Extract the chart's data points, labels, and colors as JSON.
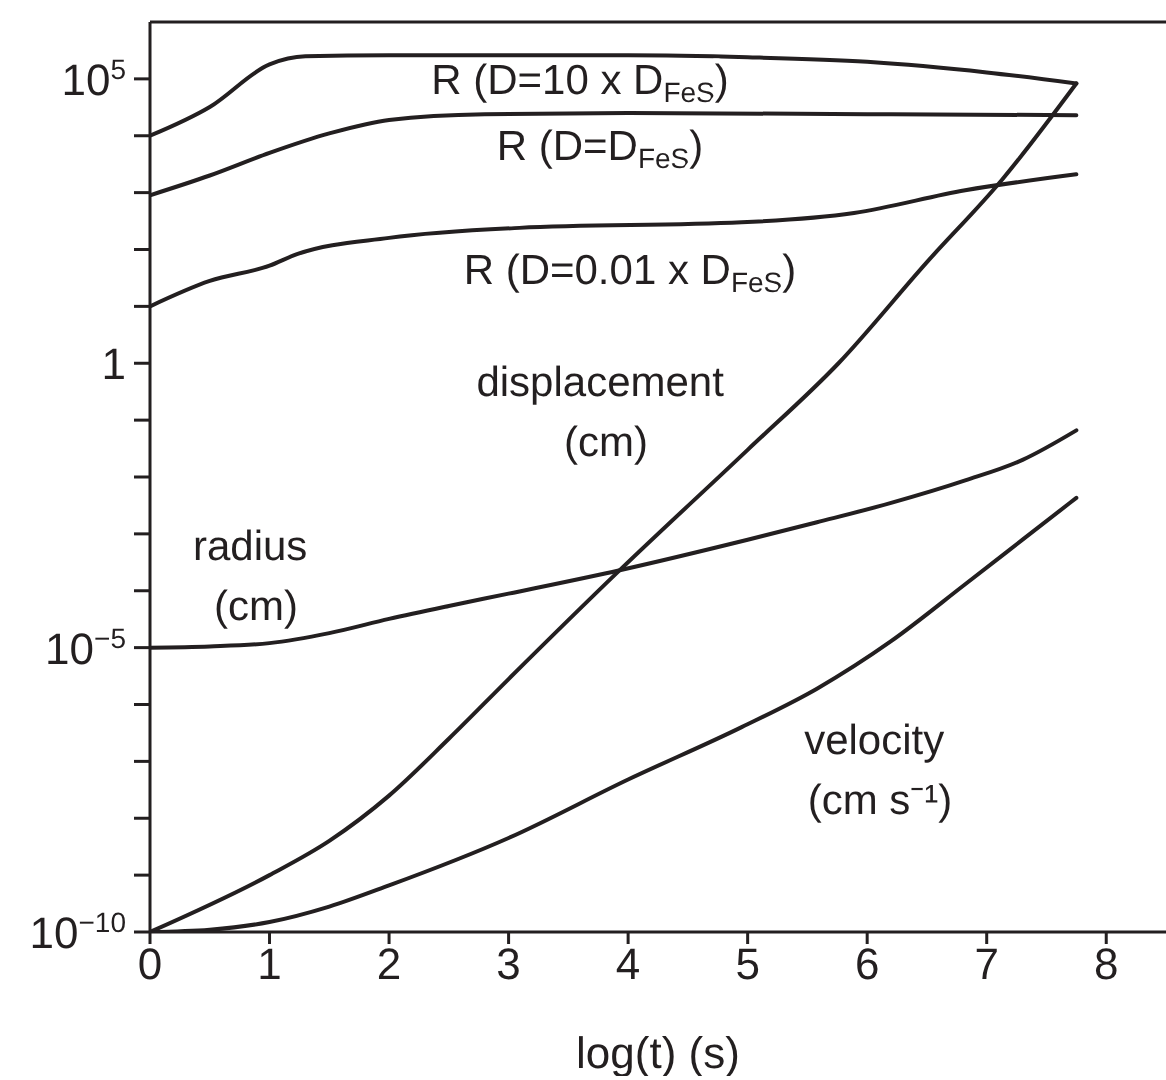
{
  "chart_data": {
    "type": "line",
    "xlabel": "log(t) (s)",
    "log": "y",
    "line_style": "solid",
    "xlim": [
      0,
      8.5
    ],
    "xticks": [
      0,
      1,
      2,
      3,
      4,
      5,
      6,
      7,
      8
    ],
    "ylim": [
      1e-10,
      1000000.0
    ],
    "yticks": [
      {
        "value": 1e-10,
        "label": "10$^{−10}$"
      },
      {
        "value": 1e-09,
        "label": null
      },
      {
        "value": 1e-08,
        "label": null
      },
      {
        "value": 1e-07,
        "label": null
      },
      {
        "value": 1e-06,
        "label": null
      },
      {
        "value": 1e-05,
        "label": "10$^{−5}$"
      },
      {
        "value": 0.0001,
        "label": null
      },
      {
        "value": 0.001,
        "label": null
      },
      {
        "value": 0.01,
        "label": null
      },
      {
        "value": 0.1,
        "label": null
      },
      {
        "value": 1,
        "label": "1"
      },
      {
        "value": 10,
        "label": null
      },
      {
        "value": 100,
        "label": null
      },
      {
        "value": 1000,
        "label": null
      },
      {
        "value": 10000,
        "label": null
      },
      {
        "value": 100000,
        "label": "10$^{5}$"
      }
    ],
    "series": [
      {
        "name": "R  (D=10 x D$_{FeS}$)",
        "color": "#231f20",
        "x": [
          0,
          0.5,
          1,
          1.3,
          2,
          4,
          5,
          6,
          7,
          7.75
        ],
        "values": [
          10000.0,
          32000.0,
          180000.0,
          250000.0,
          260000.0,
          260000.0,
          240000.0,
          200000.0,
          130000.0,
          83000.0
        ]
      },
      {
        "name": "R  (D=D$_{FeS}$)",
        "color": "#231f20",
        "x": [
          0,
          0.5,
          1,
          1.5,
          2,
          2.8,
          4,
          6,
          7.75
        ],
        "values": [
          900,
          2000,
          5000,
          11000.0,
          19000.0,
          24000.0,
          25000.0,
          24000.0,
          23000.0
        ]
      },
      {
        "name": "R (D=0.01 x D$_{FeS}$)",
        "color": "#231f20",
        "x": [
          0,
          0.5,
          1,
          1.23,
          2,
          3.09,
          4.95,
          5.89,
          6.82,
          7.75
        ],
        "values": [
          10,
          28,
          52,
          83,
          160,
          240,
          300,
          440,
          1100,
          2100
        ]
      },
      {
        "name": "displacement\n(cm)",
        "color": "#231f20",
        "x": [
          0,
          1,
          1.5,
          2,
          2.5,
          3,
          3.93,
          5,
          5.76,
          6.5,
          7.13,
          7.75
        ],
        "values": [
          1e-10,
          1e-09,
          4e-09,
          2.5e-08,
          2.5e-07,
          2.8e-06,
          0.00023,
          0.03,
          1,
          60,
          1700,
          83000.0
        ]
      },
      {
        "name": "radius\n(cm)",
        "color": "#231f20",
        "x": [
          0,
          0.5,
          1,
          1.5,
          2,
          2.5,
          3,
          3.93,
          5,
          5.58,
          6.2,
          6.82,
          7.3,
          7.75
        ],
        "values": [
          1e-05,
          1.05e-05,
          1.2e-05,
          1.8e-05,
          3.2e-05,
          5.4e-05,
          8.9e-05,
          0.00023,
          0.00079,
          0.0016,
          0.0035,
          0.0087,
          0.02,
          0.066
        ]
      },
      {
        "name": "velocity\n(cm s⁻¹)",
        "color": "#231f20",
        "x": [
          0,
          0.5,
          1,
          1.5,
          2,
          3,
          4,
          4.95,
          5.58,
          6.2,
          6.82,
          7.3,
          7.75
        ],
        "values": [
          1e-10,
          1.1e-10,
          1.5e-10,
          2.8e-10,
          6.6e-10,
          4.5e-09,
          4.8e-08,
          4e-07,
          1.9e-06,
          1.3e-05,
          0.00013,
          0.00079,
          0.0043
        ]
      }
    ]
  }
}
